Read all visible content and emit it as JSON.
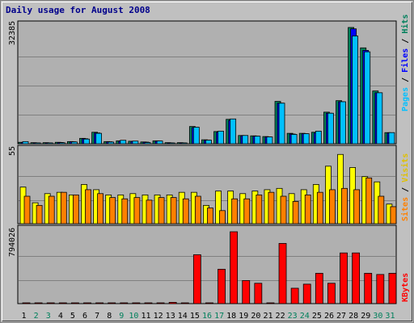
{
  "chart_data": {
    "type": "bar",
    "title": "Daily usage for August 2008",
    "categories": [
      "1",
      "2",
      "3",
      "4",
      "5",
      "6",
      "7",
      "8",
      "9",
      "10",
      "11",
      "12",
      "13",
      "14",
      "15",
      "16",
      "17",
      "18",
      "19",
      "20",
      "21",
      "22",
      "23",
      "24",
      "25",
      "26",
      "27",
      "28",
      "29",
      "30",
      "31"
    ],
    "weekend_days": [
      "2",
      "3",
      "9",
      "10",
      "16",
      "17",
      "23",
      "24",
      "30",
      "31"
    ],
    "panels": [
      {
        "name": "hits_files_pages",
        "ymax_label": "32385",
        "ylim": [
          0,
          32385
        ],
        "grid": true,
        "legend": [
          "Pages",
          "Files",
          "Hits"
        ],
        "series": [
          {
            "name": "Hits",
            "color": "#00805c",
            "values": [
              400,
              300,
              300,
              400,
              600,
              1500,
              3200,
              600,
              800,
              700,
              500,
              800,
              300,
              300,
              4800,
              1100,
              3400,
              6800,
              2300,
              2200,
              2000,
              11800,
              2900,
              2900,
              3200,
              8800,
              12000,
              32385,
              26700,
              14700,
              3100
            ]
          },
          {
            "name": "Files",
            "color": "#0000ff",
            "values": [
              350,
              250,
              250,
              350,
              550,
              1400,
              3000,
              550,
              750,
              650,
              450,
              750,
              250,
              250,
              4500,
              1000,
              3200,
              6500,
              2200,
              2100,
              1900,
              11300,
              2700,
              2800,
              3000,
              8500,
              11700,
              32000,
              26000,
              14200,
              3000
            ]
          },
          {
            "name": "Pages",
            "color": "#00c0ff",
            "values": [
              600,
              240,
              240,
              280,
              500,
              1300,
              2900,
              470,
              960,
              740,
              340,
              770,
              180,
              230,
              4600,
              1000,
              3500,
              6900,
              2300,
              2100,
              1900,
              11300,
              2600,
              2800,
              3500,
              8500,
              11700,
              30000,
              25600,
              14200,
              3100
            ]
          }
        ]
      },
      {
        "name": "visits_sites",
        "ymax_label": "55",
        "ylim": [
          0,
          55
        ],
        "grid": true,
        "legend": [
          "Sites",
          "Visits"
        ],
        "series": [
          {
            "name": "Visits",
            "color": "#ffff00",
            "values": [
              28,
              16,
              23,
              24,
              22,
              30,
              26,
              22,
              22,
              23,
              22,
              22,
              22,
              24,
              24,
              14,
              25,
              25,
              23,
              25,
              26,
              27,
              23,
              26,
              30,
              44,
              53,
              43,
              36,
              32,
              15
            ]
          },
          {
            "name": "Sites",
            "color": "#ff8000",
            "values": [
              21,
              14,
              21,
              24,
              22,
              26,
              23,
              20,
              19,
              20,
              18,
              20,
              20,
              19,
              21,
              12,
              10,
              19,
              19,
              22,
              24,
              21,
              17,
              22,
              24,
              26,
              27,
              26,
              35,
              21,
              13
            ]
          }
        ]
      },
      {
        "name": "kbytes",
        "ymax_label": "794026",
        "ylim": [
          0,
          794026
        ],
        "grid": true,
        "legend": [
          "KBytes"
        ],
        "series": [
          {
            "name": "KBytes",
            "color": "#ff0000",
            "values": [
              3000,
              2000,
              2000,
              2500,
              3000,
              4000,
              6000,
              3000,
              4000,
              3500,
              3000,
              4000,
              14000,
              3000,
              540000,
              5000,
              380000,
              794026,
              255000,
              225000,
              5000,
              665000,
              170000,
              215000,
              335000,
              225000,
              560000,
              560000,
              335000,
              322000,
              335000
            ]
          }
        ]
      }
    ]
  }
}
